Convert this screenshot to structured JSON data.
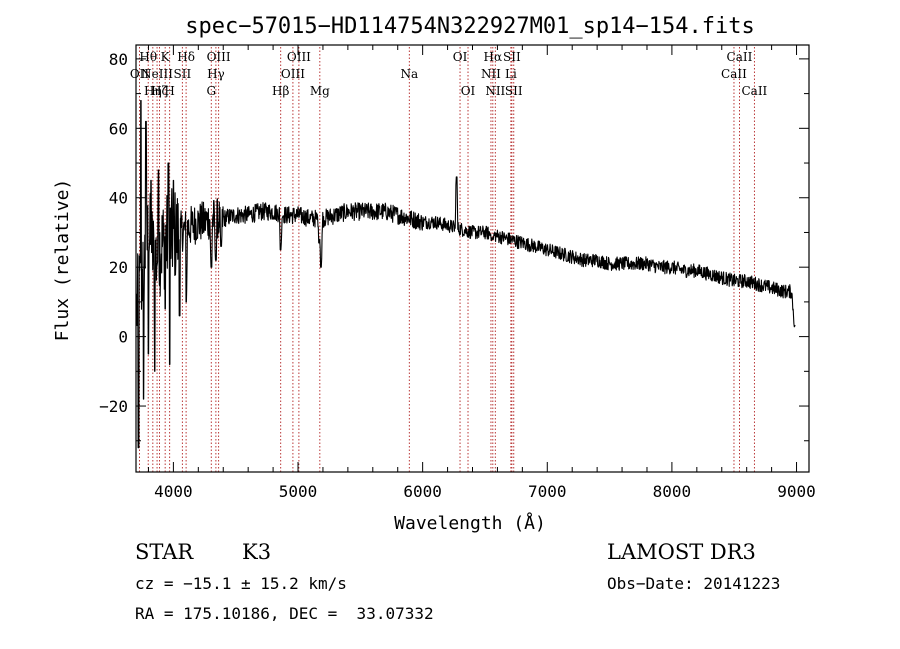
{
  "chart_data": {
    "type": "line",
    "title": "spec−57015−HD114754N322927M01_sp14−154.fits",
    "xlabel": "Wavelength (Å)",
    "ylabel": "Flux (relative)",
    "xlim": [
      3700,
      9100
    ],
    "ylim": [
      -39,
      84
    ],
    "xticks": [
      4000,
      5000,
      6000,
      7000,
      8000,
      9000
    ],
    "yticks": [
      -20,
      0,
      20,
      40,
      60,
      80
    ],
    "ytick_labels": [
      "−20",
      "0",
      "20",
      "40",
      "60",
      "80"
    ],
    "line_color": "#000000",
    "marker_color": "#b22222",
    "lines": [
      {
        "wave": 3728,
        "label": "OII",
        "row": 1
      },
      {
        "wave": 3798,
        "label": "Hθ",
        "row": 0
      },
      {
        "wave": 3835,
        "label": "Hη",
        "row": 2
      },
      {
        "wave": 3869,
        "label": "NeIII",
        "row": 1
      },
      {
        "wave": 3889,
        "label": "Hζ",
        "row": 2
      },
      {
        "wave": 3934,
        "label": "K",
        "row": 0
      },
      {
        "wave": 3970,
        "label": "H",
        "row": 2
      },
      {
        "wave": 4072,
        "label": "SII",
        "row": 1
      },
      {
        "wave": 4102,
        "label": "Hδ",
        "row": 0
      },
      {
        "wave": 4304,
        "label": "G",
        "row": 2
      },
      {
        "wave": 4341,
        "label": "Hγ",
        "row": 1
      },
      {
        "wave": 4363,
        "label": "OIII",
        "row": 0
      },
      {
        "wave": 4861,
        "label": "Hβ",
        "row": 2
      },
      {
        "wave": 4959,
        "label": "OIII",
        "row": 1
      },
      {
        "wave": 5007,
        "label": "OIII",
        "row": 0
      },
      {
        "wave": 5175,
        "label": "Mg",
        "row": 2
      },
      {
        "wave": 5893,
        "label": "Na",
        "row": 1
      },
      {
        "wave": 6300,
        "label": "OI",
        "row": 0
      },
      {
        "wave": 6364,
        "label": "OI",
        "row": 2
      },
      {
        "wave": 6548,
        "label": "NII",
        "row": 1
      },
      {
        "wave": 6563,
        "label": "Hα",
        "row": 0
      },
      {
        "wave": 6583,
        "label": "NII",
        "row": 2
      },
      {
        "wave": 6708,
        "label": "Li",
        "row": 1
      },
      {
        "wave": 6716,
        "label": "SII",
        "row": 0
      },
      {
        "wave": 6731,
        "label": "SII",
        "row": 2
      },
      {
        "wave": 8498,
        "label": "CaII",
        "row": 1
      },
      {
        "wave": 8542,
        "label": "CaII",
        "row": 0
      },
      {
        "wave": 8662,
        "label": "CaII",
        "row": 2
      }
    ],
    "spectrum_trend": {
      "wave": [
        3705,
        3760,
        3800,
        3850,
        3900,
        3950,
        4000,
        4050,
        4100,
        4150,
        4200,
        4250,
        4300,
        4400,
        4500,
        4600,
        4700,
        4800,
        4900,
        5000,
        5100,
        5200,
        5300,
        5400,
        5500,
        5600,
        5700,
        5800,
        5900,
        6000,
        6100,
        6200,
        6300,
        6400,
        6500,
        6600,
        6700,
        6800,
        6900,
        7000,
        7100,
        7200,
        7300,
        7400,
        7500,
        7600,
        7700,
        7800,
        7900,
        8000,
        8100,
        8200,
        8300,
        8400,
        8500,
        8600,
        8700,
        8800,
        8900,
        8960,
        8990
      ],
      "flux": [
        8,
        20,
        30,
        22,
        26,
        28,
        29,
        30,
        31,
        32,
        33,
        33,
        34,
        34,
        35,
        35,
        36,
        36,
        35,
        35,
        34,
        34,
        35,
        36,
        36,
        36,
        36,
        35,
        34,
        33,
        33,
        32,
        31,
        30,
        30,
        29,
        28,
        27,
        26,
        25,
        24,
        23,
        22,
        22,
        21,
        21,
        21,
        21,
        20,
        20,
        19,
        19,
        18,
        17,
        16,
        16,
        15,
        14,
        13,
        13,
        1
      ]
    },
    "spectrum_features": [
      {
        "wave": 3720,
        "flux": -32
      },
      {
        "wave": 3740,
        "flux": 68
      },
      {
        "wave": 3760,
        "flux": -18
      },
      {
        "wave": 3780,
        "flux": 62
      },
      {
        "wave": 3800,
        "flux": -5
      },
      {
        "wave": 3820,
        "flux": 45
      },
      {
        "wave": 3850,
        "flux": -10
      },
      {
        "wave": 3880,
        "flux": 48
      },
      {
        "wave": 3935,
        "flux": 8
      },
      {
        "wave": 3960,
        "flux": 50
      },
      {
        "wave": 3970,
        "flux": -8
      },
      {
        "wave": 4000,
        "flux": 45
      },
      {
        "wave": 4050,
        "flux": 6
      },
      {
        "wave": 4102,
        "flux": 10
      },
      {
        "wave": 4304,
        "flux": 20
      },
      {
        "wave": 4340,
        "flux": 22
      },
      {
        "wave": 4383,
        "flux": 26
      },
      {
        "wave": 4861,
        "flux": 25
      },
      {
        "wave": 5170,
        "flux": 27
      },
      {
        "wave": 5185,
        "flux": 20
      },
      {
        "wave": 6272,
        "flux": 46
      },
      {
        "wave": 6563,
        "flux": 28
      }
    ]
  },
  "info": {
    "object_class": "STAR",
    "subclass": "K3",
    "survey": "LAMOST DR3",
    "redshift": "cz = −15.1 ± 15.2 km/s",
    "obs_date": "Obs−Date: 20141223",
    "coords": "RA = 175.10186, DEC =  33.07332"
  }
}
